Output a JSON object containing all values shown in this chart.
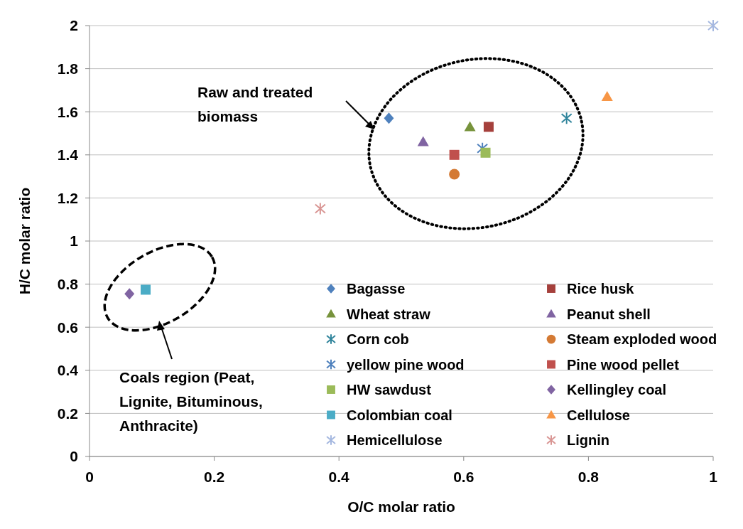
{
  "chart_data": {
    "type": "scatter",
    "xlabel": "O/C molar ratio",
    "ylabel": "H/C molar ratio",
    "xlim": [
      0,
      1
    ],
    "xticks": [
      0,
      0.2,
      0.4,
      0.6,
      0.8,
      1
    ],
    "ylim": [
      0,
      2
    ],
    "yticks": [
      0,
      0.2,
      0.4,
      0.6,
      0.8,
      1,
      1.2,
      1.4,
      1.6,
      1.8,
      2
    ],
    "grid": "y",
    "legend": "bottom right",
    "annotations": [
      "Raw and treated biomass",
      "Coals region (Peat, Lignite, Bituminous, Anthracite)"
    ],
    "series": [
      {
        "name": "Bagasse",
        "color": "#4f81bd",
        "marker": "diamond",
        "x": [
          0.48
        ],
        "values": [
          1.57
        ]
      },
      {
        "name": "Rice husk",
        "color": "#a5403c",
        "marker": "square",
        "x": [
          0.64
        ],
        "values": [
          1.53
        ]
      },
      {
        "name": "Wheat straw",
        "color": "#77933c",
        "marker": "triangle",
        "x": [
          0.61
        ],
        "values": [
          1.53
        ]
      },
      {
        "name": "Peanut shell",
        "color": "#8064a2",
        "marker": "triangle",
        "x": [
          0.535
        ],
        "values": [
          1.46
        ]
      },
      {
        "name": "Corn cob",
        "color": "#31859c",
        "marker": "cross",
        "x": [
          0.765
        ],
        "values": [
          1.57
        ]
      },
      {
        "name": "Steam exploded wood",
        "color": "#d47a34",
        "marker": "circle",
        "x": [
          0.585
        ],
        "values": [
          1.31
        ]
      },
      {
        "name": "yellow pine wood",
        "color": "#4f81bd",
        "marker": "cross",
        "x": [
          0.63
        ],
        "values": [
          1.43
        ]
      },
      {
        "name": "Pine wood pellet",
        "color": "#c0504d",
        "marker": "square",
        "x": [
          0.585
        ],
        "values": [
          1.4
        ]
      },
      {
        "name": "HW sawdust",
        "color": "#9bbb59",
        "marker": "square",
        "x": [
          0.635
        ],
        "values": [
          1.41
        ]
      },
      {
        "name": "Kellingley coal",
        "color": "#8064a2",
        "marker": "diamond",
        "x": [
          0.064
        ],
        "values": [
          0.755
        ]
      },
      {
        "name": "Colombian coal",
        "color": "#4bacc6",
        "marker": "square",
        "x": [
          0.09
        ],
        "values": [
          0.774
        ]
      },
      {
        "name": "Cellulose",
        "color": "#f79646",
        "marker": "triangle",
        "x": [
          0.83
        ],
        "values": [
          1.67
        ]
      },
      {
        "name": "Hemicellulose",
        "color": "#a5b8e0",
        "marker": "cross",
        "x": [
          1
        ],
        "values": [
          2
        ]
      },
      {
        "name": "Lignin",
        "color": "#d99694",
        "marker": "cross",
        "x": [
          0.37
        ],
        "values": [
          1.15
        ]
      }
    ]
  }
}
